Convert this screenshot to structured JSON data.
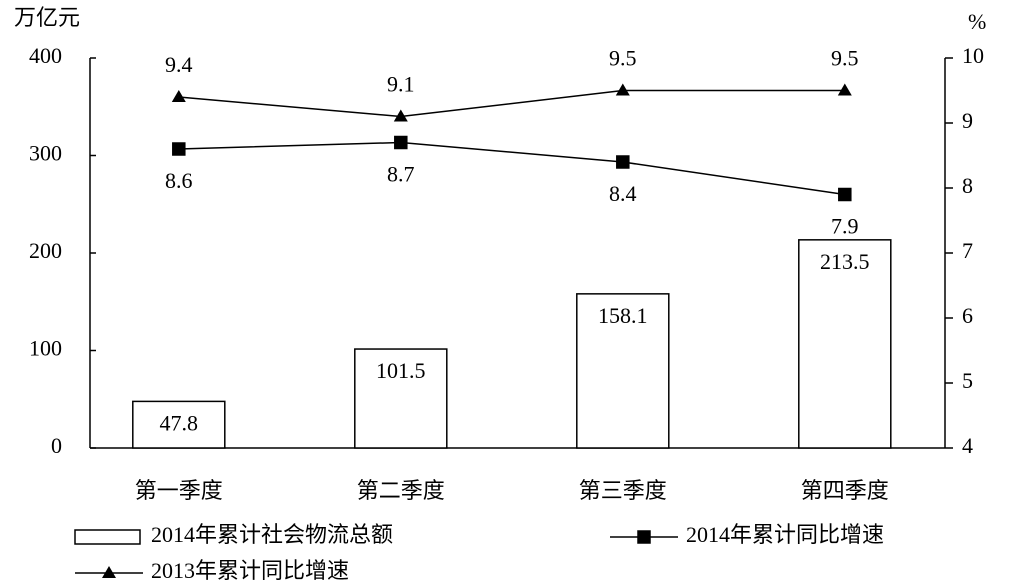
{
  "chart_data": {
    "type": "bar_line",
    "y_label": "万亿元",
    "y2_label": "%",
    "categories": [
      "第一季度",
      "第二季度",
      "第三季度",
      "第四季度"
    ],
    "ylim": [
      0,
      400
    ],
    "yticks": [
      0,
      100,
      200,
      300,
      400
    ],
    "y2lim": [
      4,
      10
    ],
    "y2ticks": [
      4,
      5,
      6,
      7,
      8,
      9,
      10
    ],
    "series": [
      {
        "name": "2014年累计社会物流总额",
        "type": "bar",
        "color": "#ffffff",
        "values": [
          47.8,
          101.5,
          158.1,
          213.5
        ]
      },
      {
        "name": "2014年累计同比增速",
        "type": "line",
        "marker": "square",
        "axis": "y2",
        "color": "#000000",
        "values": [
          8.6,
          8.7,
          8.4,
          7.9
        ]
      },
      {
        "name": "2013年累计同比增速",
        "type": "line",
        "marker": "triangle",
        "axis": "y2",
        "color": "#000000",
        "values": [
          9.4,
          9.1,
          9.5,
          9.5
        ]
      }
    ]
  }
}
